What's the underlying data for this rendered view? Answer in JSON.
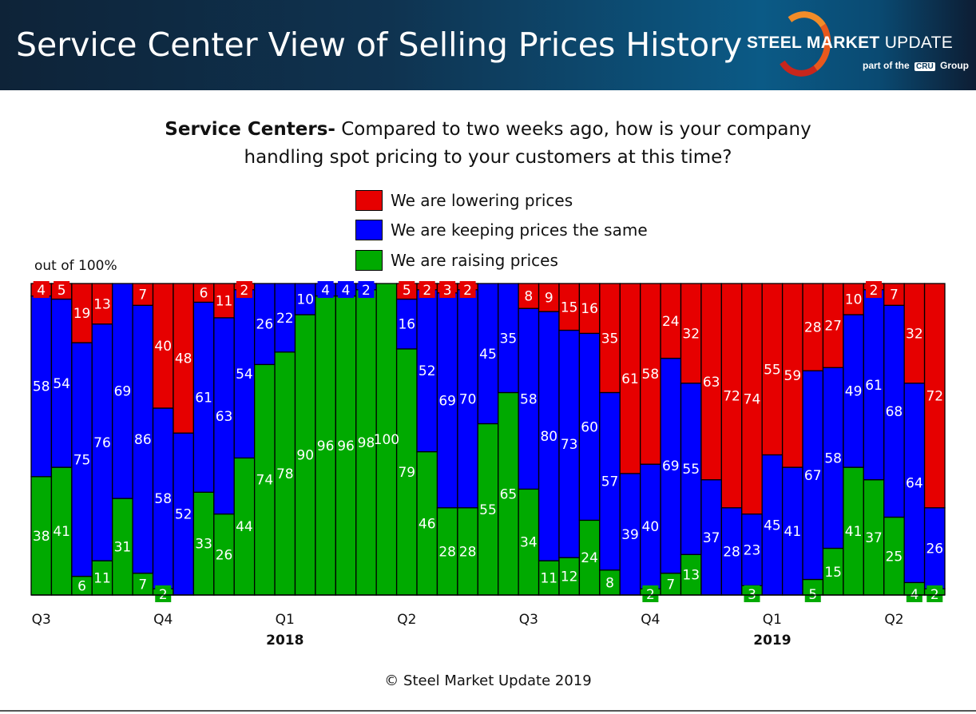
{
  "header": {
    "title": "Service Center View of Selling Prices History",
    "logo_text": "STEEL MARKET UPDATE",
    "logo_subtext": "part of the CRU Group"
  },
  "question": {
    "bold": "Service Centers-",
    "line1": " Compared to two weeks ago, how is your company",
    "line2": "handling spot pricing to your customers at this time?"
  },
  "footer": {
    "copyright": "© Steel Market Update 2019"
  },
  "chart_data": {
    "type": "bar",
    "stacked": true,
    "normalized": true,
    "ylabel": "out of 100%",
    "ylim": [
      0,
      100
    ],
    "legend_position": "top-center",
    "grid": false,
    "colors": {
      "lowering": "#e60000",
      "same": "#0000ff",
      "raising": "#00aa00"
    },
    "series": [
      {
        "key": "raising",
        "name": "We are raising prices",
        "values": [
          38,
          41,
          6,
          11,
          31,
          7,
          2,
          0,
          33,
          26,
          44,
          74,
          78,
          90,
          96,
          96,
          98,
          100,
          79,
          46,
          28,
          28,
          55,
          65,
          34,
          11,
          12,
          24,
          8,
          0,
          2,
          7,
          13,
          0,
          0,
          3,
          0,
          0,
          5,
          15,
          41,
          37,
          25,
          4,
          2
        ]
      },
      {
        "key": "same",
        "name": "We are keeping prices the same",
        "values": [
          58,
          54,
          75,
          76,
          69,
          86,
          58,
          52,
          61,
          63,
          54,
          26,
          22,
          10,
          4,
          4,
          2,
          0,
          16,
          52,
          69,
          70,
          45,
          35,
          58,
          80,
          73,
          60,
          57,
          39,
          40,
          69,
          55,
          37,
          28,
          23,
          45,
          41,
          67,
          58,
          49,
          61,
          68,
          64,
          26
        ]
      },
      {
        "key": "lowering",
        "name": "We are lowering prices",
        "values": [
          4,
          5,
          19,
          13,
          0,
          7,
          40,
          48,
          6,
          11,
          2,
          0,
          0,
          0,
          0,
          0,
          0,
          0,
          5,
          2,
          3,
          2,
          0,
          0,
          8,
          9,
          15,
          16,
          35,
          61,
          58,
          24,
          32,
          63,
          72,
          74,
          55,
          59,
          28,
          27,
          10,
          2,
          7,
          32,
          72
        ]
      }
    ],
    "x_tick_labels": [
      {
        "bar": 0,
        "label": "Q3"
      },
      {
        "bar": 6,
        "label": "Q4"
      },
      {
        "bar": 12,
        "label": "Q1",
        "year": "2018"
      },
      {
        "bar": 18,
        "label": "Q2"
      },
      {
        "bar": 24,
        "label": "Q3"
      },
      {
        "bar": 30,
        "label": "Q4"
      },
      {
        "bar": 36,
        "label": "Q1",
        "year": "2019"
      },
      {
        "bar": 42,
        "label": "Q2"
      }
    ]
  }
}
